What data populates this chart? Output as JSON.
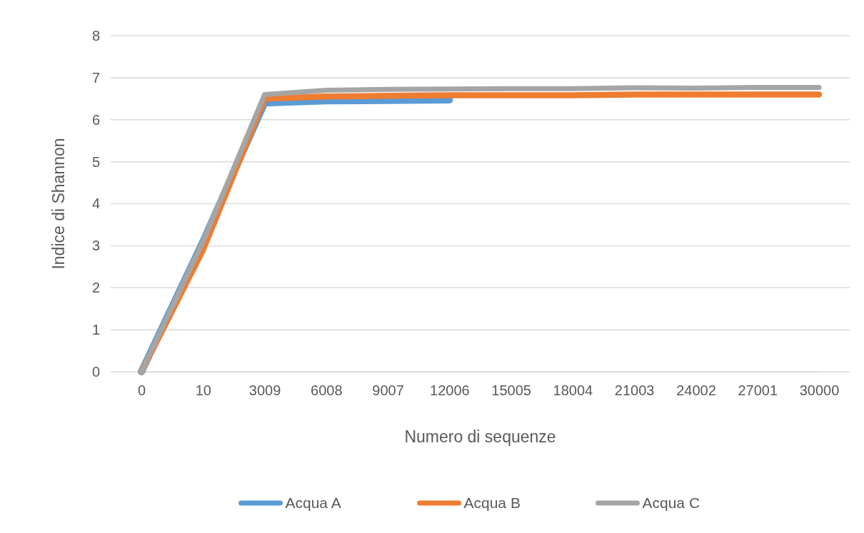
{
  "chart_data": {
    "type": "line",
    "xlabel": "Numero di sequenze",
    "ylabel": "Indice di Shannon",
    "categories": [
      "0",
      "10",
      "3009",
      "6008",
      "9007",
      "12006",
      "15005",
      "18004",
      "21003",
      "24002",
      "27001",
      "30000"
    ],
    "ylim": [
      0,
      8
    ],
    "yticks": [
      0,
      1,
      2,
      3,
      4,
      5,
      6,
      7,
      8
    ],
    "grid": "y",
    "legend": "bottom",
    "line_style": "solid",
    "marker": "none",
    "series": [
      {
        "name": "Acqua A",
        "color": "#5b9bd5",
        "values": [
          0,
          3.1,
          6.4,
          6.45,
          6.46,
          6.47,
          null,
          null,
          null,
          null,
          null,
          null
        ]
      },
      {
        "name": "Acqua B",
        "color": "#ed7d31",
        "values": [
          0,
          2.9,
          6.5,
          6.55,
          6.57,
          6.58,
          6.58,
          6.58,
          6.6,
          6.6,
          6.6,
          6.6
        ]
      },
      {
        "name": "Acqua C",
        "color": "#a5a5a5",
        "values": [
          0,
          3.1,
          6.6,
          6.7,
          6.72,
          6.73,
          6.74,
          6.74,
          6.76,
          6.75,
          6.77,
          6.77
        ]
      }
    ]
  }
}
